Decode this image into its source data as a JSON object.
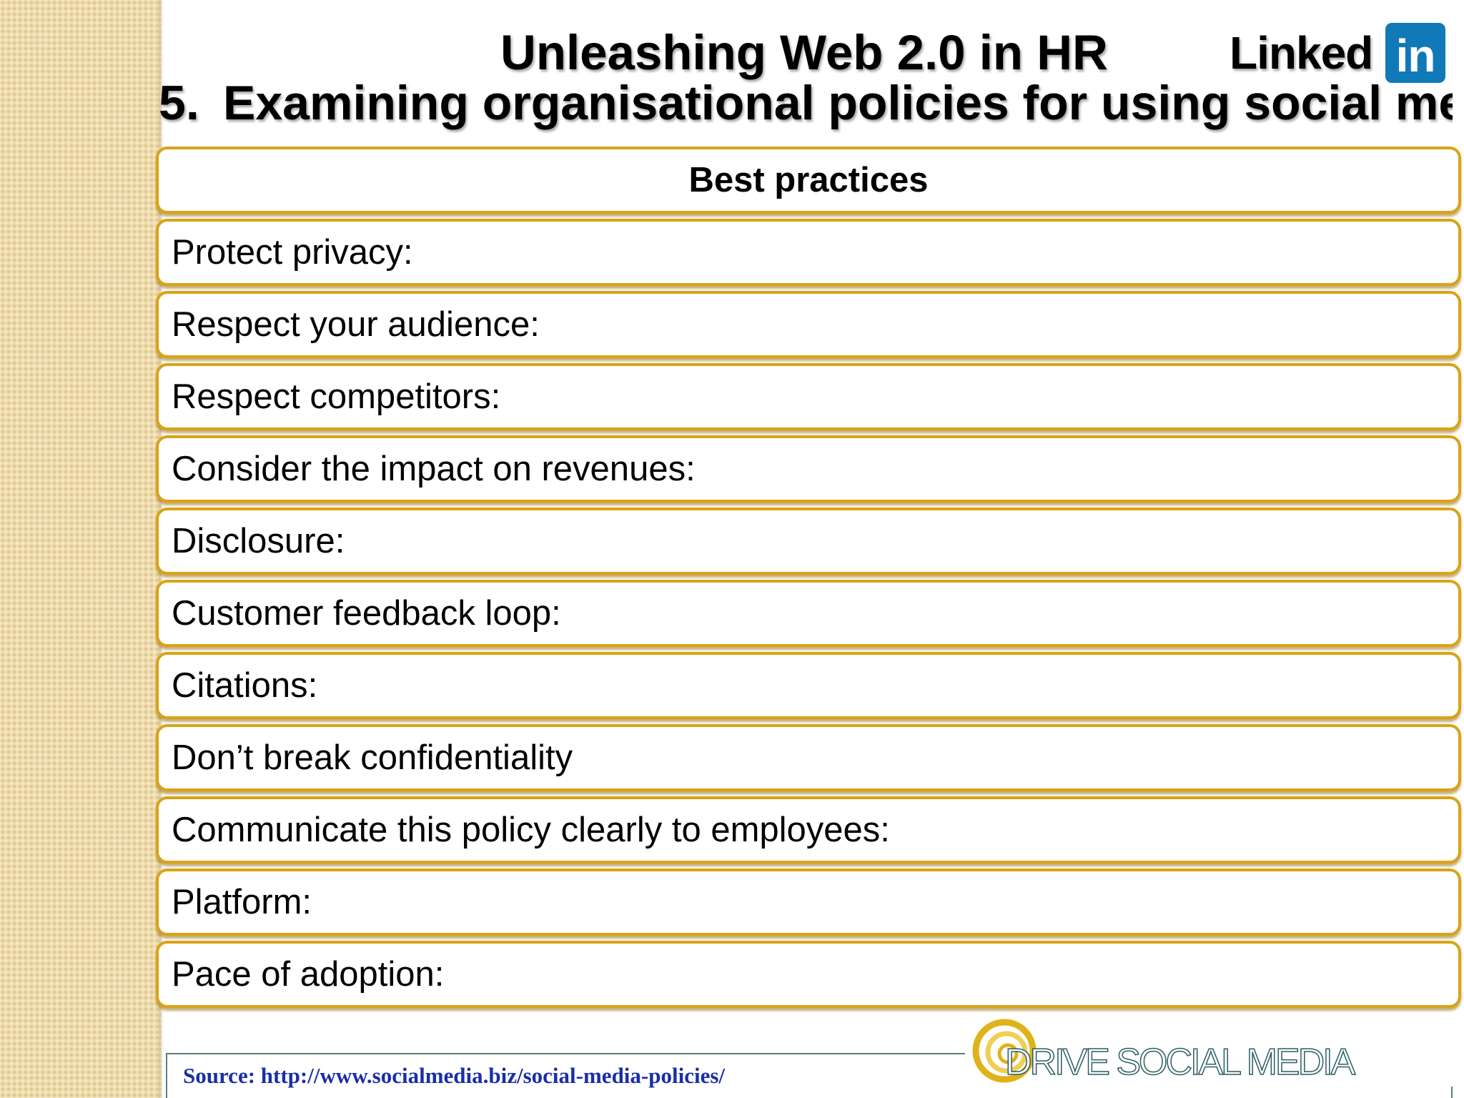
{
  "slide": {
    "title": "Unleashing Web 2.0 in HR",
    "subtitle_number": "5.",
    "subtitle_text": "Examining organisational policies for using social media",
    "linkedin_logo": {
      "word": "Linked",
      "badge": "in",
      "badge_color": "#1279b8"
    },
    "table": {
      "header": "Best practices",
      "rows": [
        "Protect privacy:",
        "Respect your audience:",
        "Respect competitors:",
        "Consider the impact on revenues:",
        "Disclosure:",
        "Customer feedback loop:",
        "Citations:",
        "Don’t break confidentiality",
        "Communicate this policy clearly to employees:",
        "Platform:",
        "Pace of adoption:"
      ],
      "border_color": "#d9a316"
    },
    "source": "Source: http://www.socialmedia.biz/social-media-policies/",
    "drive_logo": {
      "text": "DRIVE SOCIAL MEDIA",
      "color": "#2a5c63"
    }
  }
}
